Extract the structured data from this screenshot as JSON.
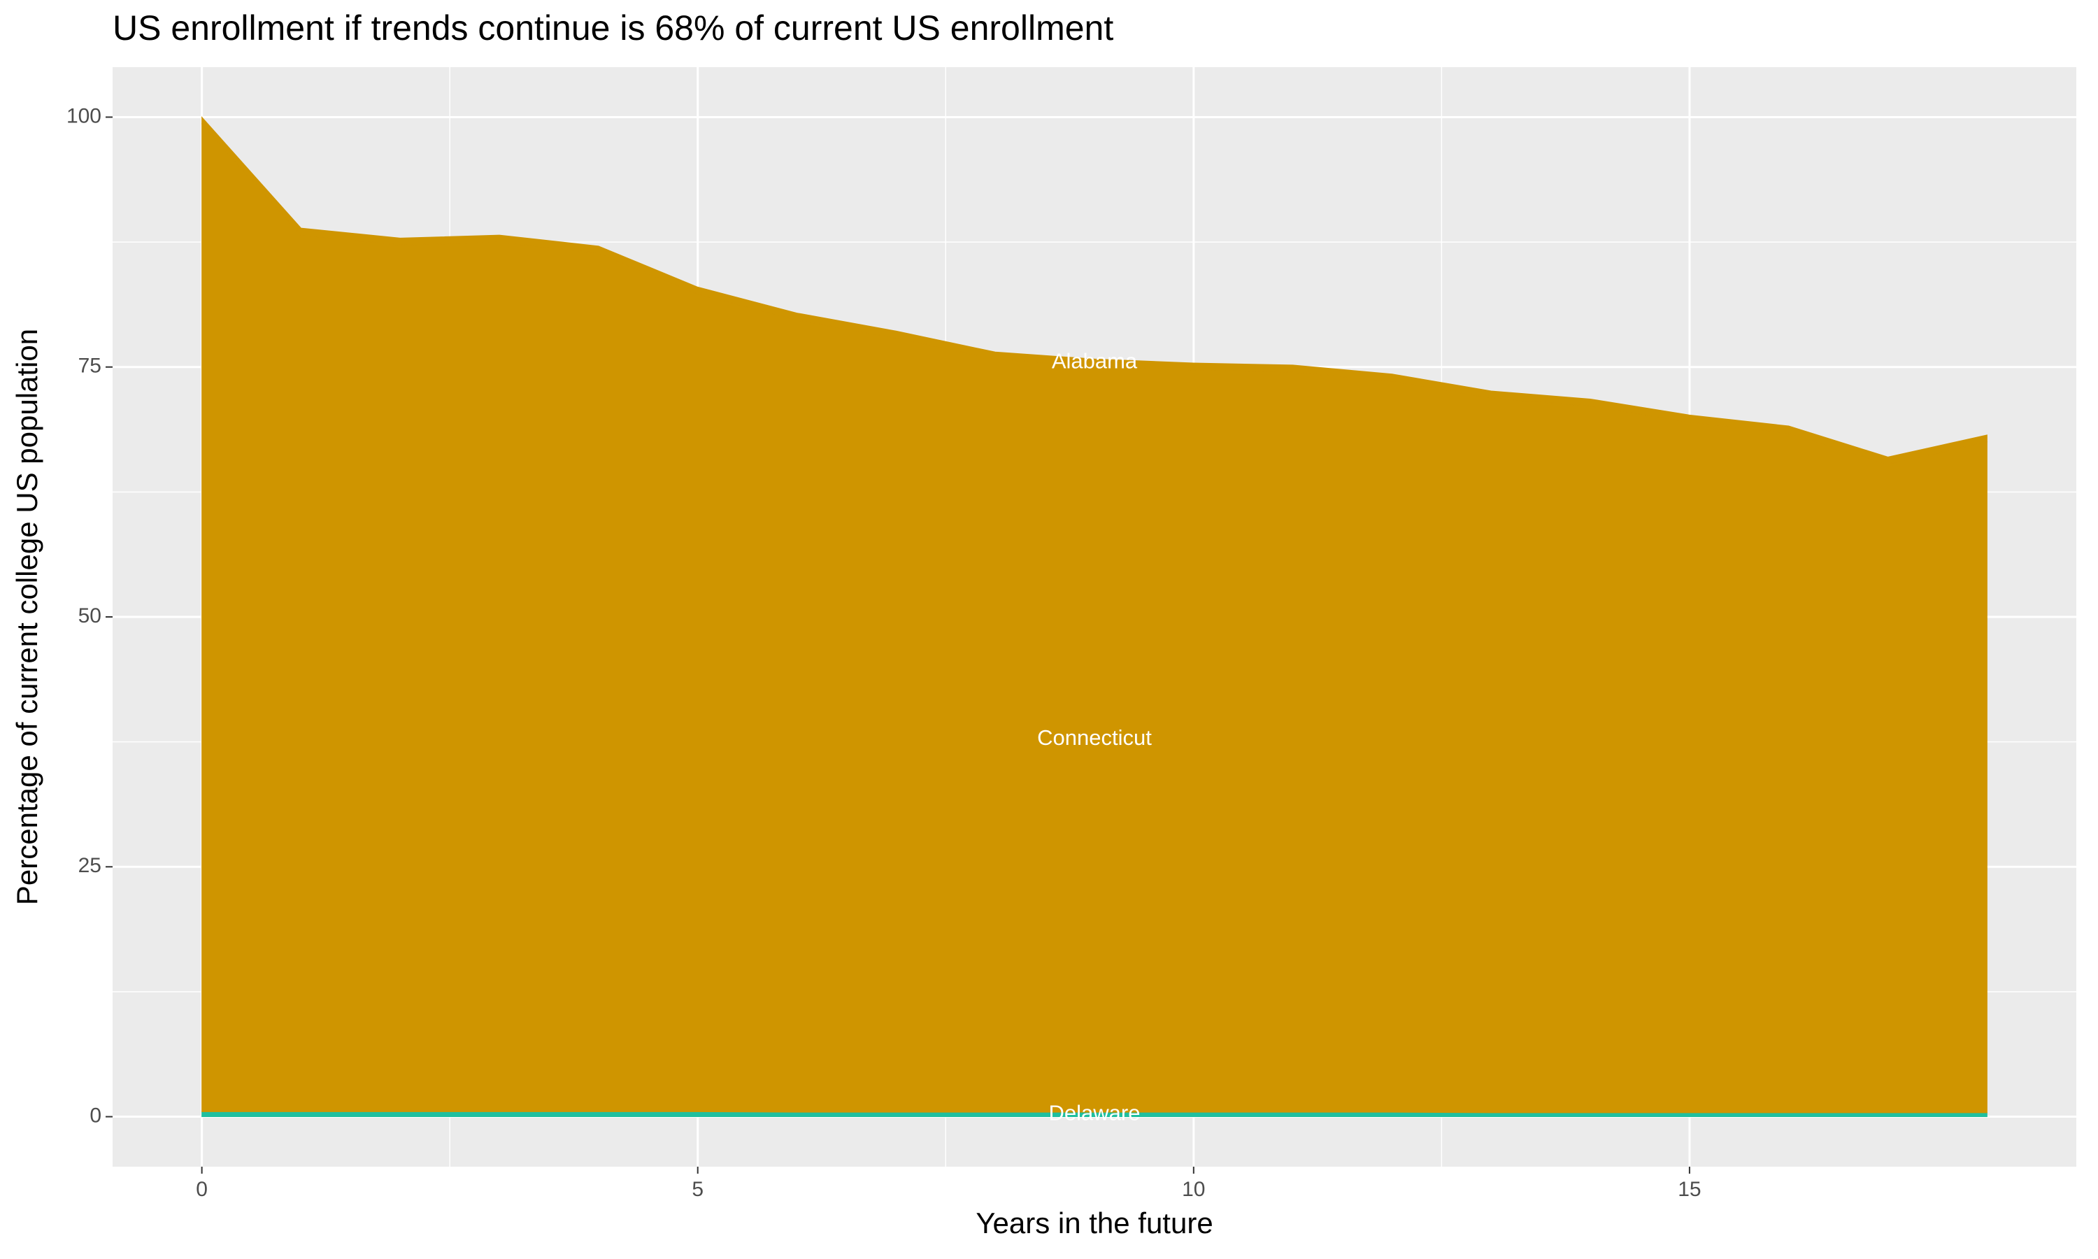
{
  "chart_data": {
    "type": "stacked_area",
    "title": "US enrollment if trends continue is 68% of current US enrollment",
    "x_label": "Years in the future",
    "y_label": "Percentage of current college US population",
    "x": [
      0,
      1,
      2,
      3,
      4,
      5,
      6,
      7,
      8,
      9,
      10,
      11,
      12,
      13,
      14,
      15,
      16,
      17,
      18
    ],
    "series": [
      {
        "name": "Delaware",
        "color": "#1fbf9f",
        "values": [
          0.5,
          0.5,
          0.5,
          0.5,
          0.5,
          0.5,
          0.45,
          0.45,
          0.45,
          0.45,
          0.45,
          0.45,
          0.45,
          0.4,
          0.4,
          0.4,
          0.4,
          0.4,
          0.4
        ]
      },
      {
        "name": "Connecticut",
        "color": "#cf9500",
        "values": [
          98.8,
          87.7,
          86.7,
          87.0,
          85.9,
          81.8,
          79.25,
          77.45,
          75.35,
          74.65,
          74.25,
          74.05,
          73.15,
          71.5,
          70.7,
          69.1,
          68.0,
          64.9,
          67.1
        ]
      },
      {
        "name": "Alabama",
        "color": "#cf9500",
        "values": [
          0.7,
          0.7,
          0.7,
          0.7,
          0.7,
          0.7,
          0.7,
          0.7,
          0.7,
          0.7,
          0.7,
          0.7,
          0.7,
          0.7,
          0.7,
          0.7,
          0.7,
          0.7,
          0.7
        ]
      }
    ],
    "xlim": [
      -0.9,
      18.9
    ],
    "ylim": [
      -5,
      105
    ],
    "xticks": [
      0,
      5,
      10,
      15
    ],
    "yticks": [
      0,
      25,
      50,
      75,
      100
    ],
    "grid": true,
    "minor_grid": true,
    "panel_color": "#ebebeb"
  }
}
